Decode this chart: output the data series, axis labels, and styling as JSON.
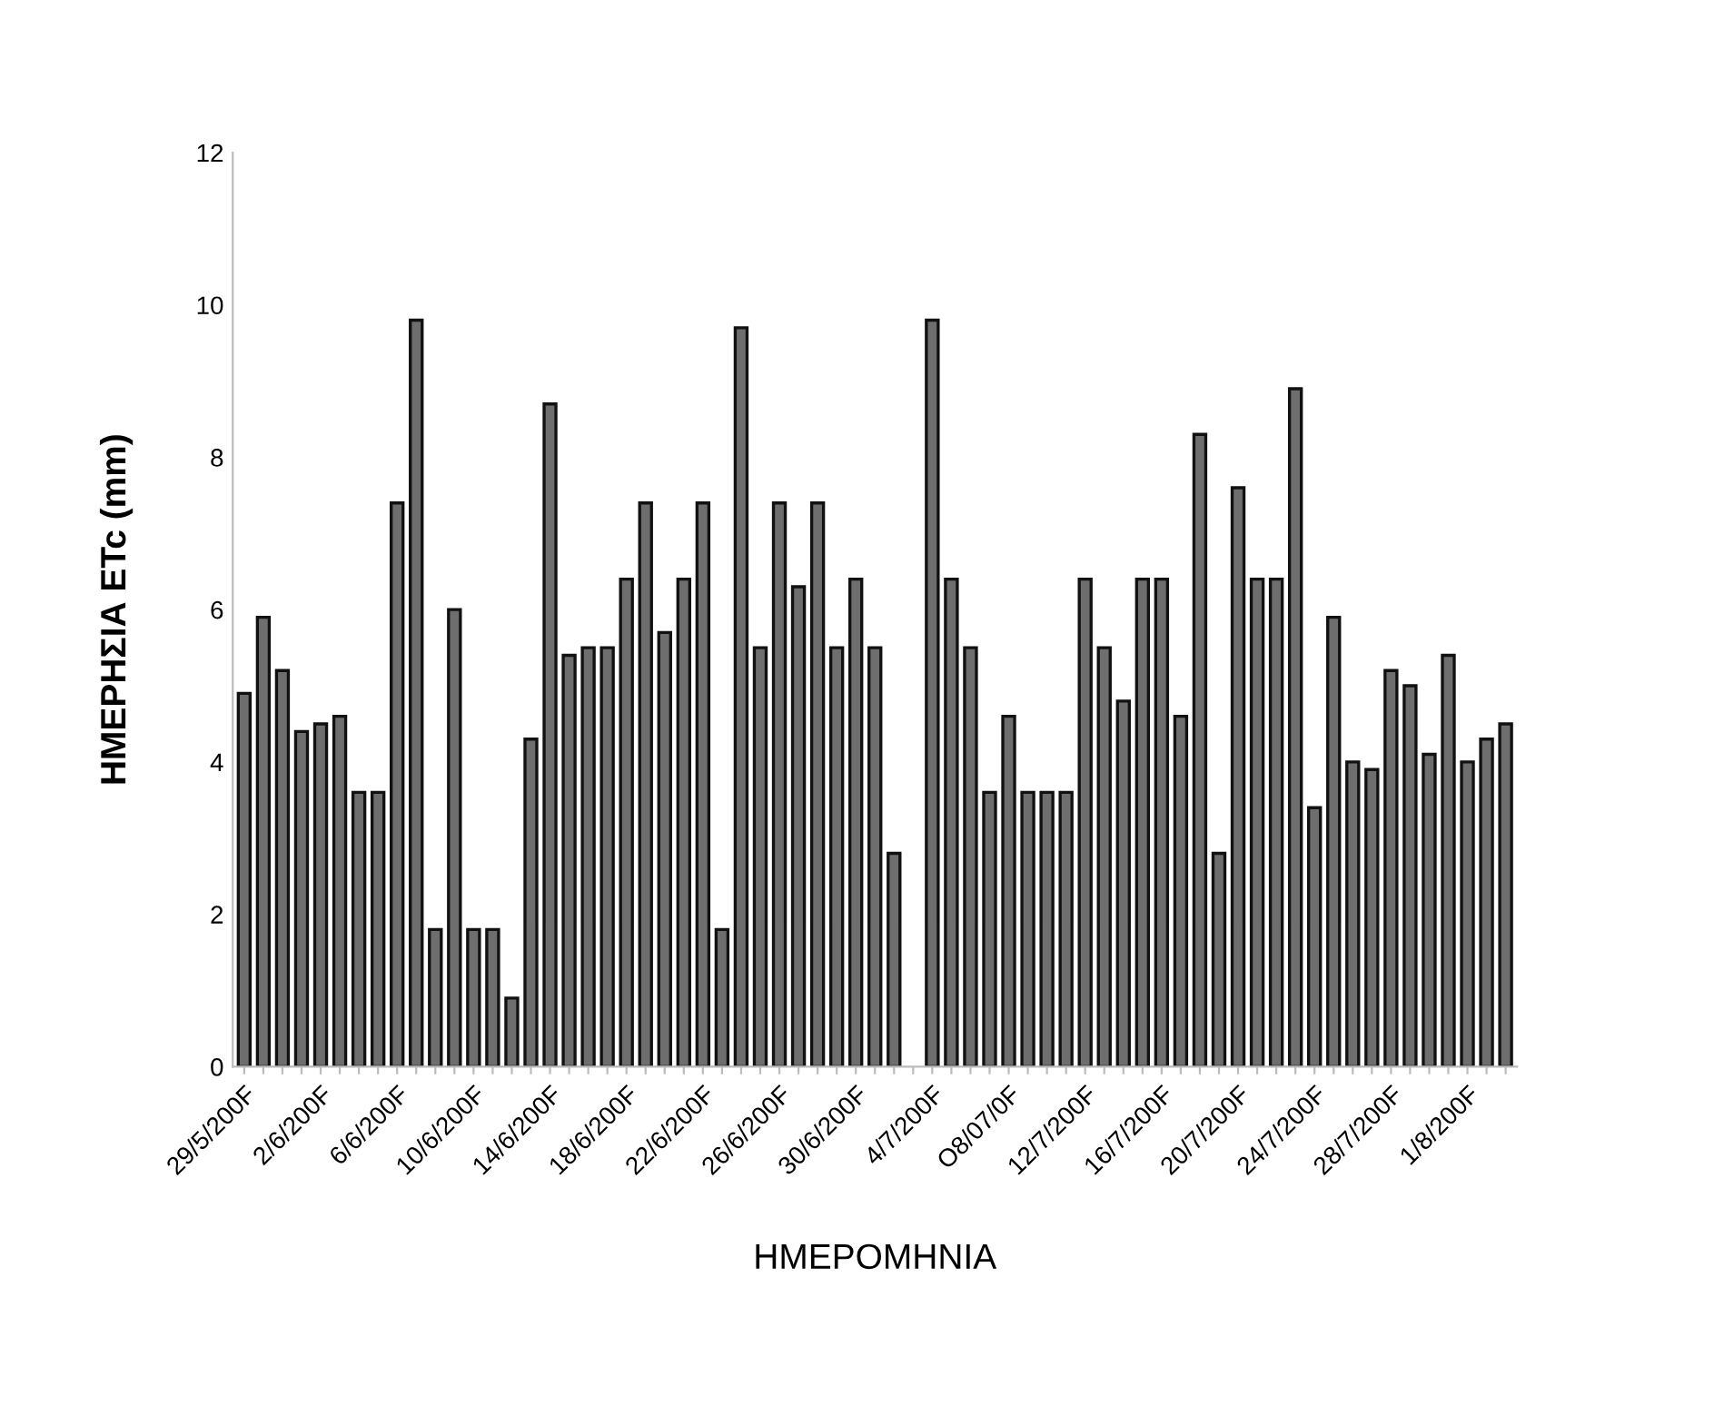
{
  "chart_data": {
    "type": "bar",
    "xlabel": "ΗΜΕΡΟΜΗΝΙΑ",
    "ylabel": "ΗΜΕΡΗΣΙΑ ETc (mm)",
    "categories": [
      "29/5/200F",
      null,
      null,
      null,
      "2/6/200F",
      null,
      null,
      null,
      "6/6/200F",
      null,
      null,
      null,
      "10/6/200F",
      null,
      null,
      null,
      "14/6/200F",
      null,
      null,
      null,
      "18/6/200F",
      null,
      null,
      null,
      "22/6/200F",
      null,
      null,
      null,
      "26/6/200F",
      null,
      null,
      null,
      "30/6/200F",
      null,
      null,
      null,
      "4/7/200F",
      null,
      null,
      null,
      "O8/07/0F",
      null,
      null,
      null,
      "12/7/200F",
      null,
      null,
      null,
      "16/7/200F",
      null,
      null,
      null,
      "20/7/200F",
      null,
      null,
      null,
      "24/7/200F",
      null,
      null,
      null,
      "28/7/200F",
      null,
      null,
      null,
      "1/8/200F",
      null,
      null
    ],
    "values": [
      4.9,
      5.9,
      5.2,
      4.4,
      4.5,
      4.6,
      3.6,
      3.6,
      7.4,
      9.8,
      1.8,
      6.0,
      1.8,
      1.8,
      0.9,
      4.3,
      8.7,
      5.4,
      5.5,
      5.5,
      6.4,
      7.4,
      5.7,
      6.4,
      7.4,
      1.8,
      9.7,
      5.5,
      7.4,
      6.3,
      7.4,
      5.5,
      6.4,
      5.5,
      2.8,
      null,
      9.8,
      6.4,
      5.5,
      3.6,
      4.6,
      3.6,
      3.6,
      3.6,
      6.4,
      5.5,
      4.8,
      6.4,
      6.4,
      4.6,
      8.3,
      2.8,
      7.6,
      6.4,
      6.4,
      8.9,
      3.4,
      5.9,
      4.0,
      3.9,
      5.2,
      5.0,
      4.1,
      5.4,
      4.0,
      4.3,
      4.5
    ],
    "color": "#6e6e6e",
    "ylim": [
      0,
      12
    ],
    "yticks": [
      0,
      2,
      4,
      6,
      8,
      10,
      12
    ],
    "grid": false,
    "legend": false
  }
}
